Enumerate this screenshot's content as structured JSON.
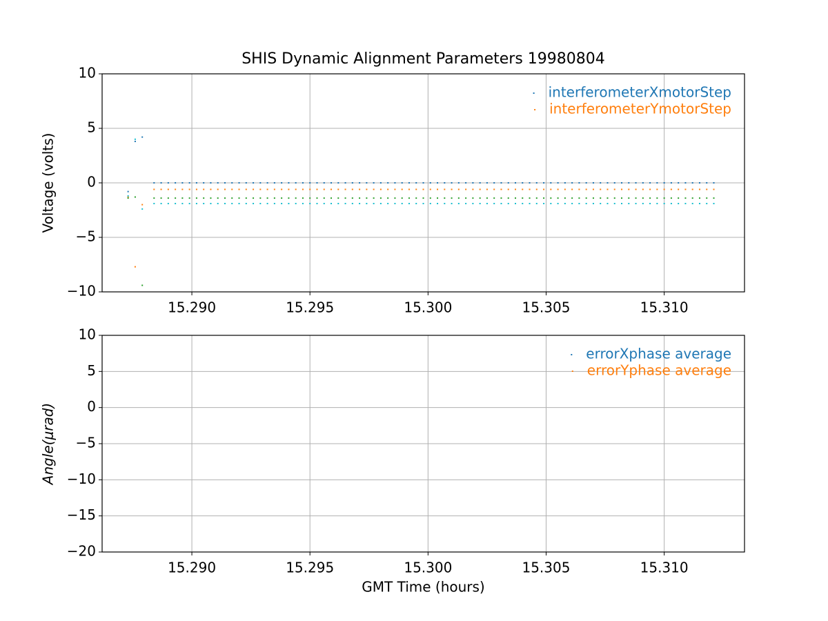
{
  "chart_data": [
    {
      "type": "scatter",
      "title": "SHIS Dynamic Alignment Parameters 19980804",
      "ylabel": "Voltage (volts)",
      "xlim": [
        15.2862,
        15.3134
      ],
      "ylim": [
        -10,
        10
      ],
      "xticks": [
        {
          "value": 15.29,
          "label": "15.290"
        },
        {
          "value": 15.295,
          "label": "15.295"
        },
        {
          "value": 15.3,
          "label": "15.300"
        },
        {
          "value": 15.305,
          "label": "15.305"
        },
        {
          "value": 15.31,
          "label": "15.310"
        }
      ],
      "yticks": [
        {
          "value": -10,
          "label": "−10"
        },
        {
          "value": -5,
          "label": "−5"
        },
        0,
        5,
        10
      ],
      "grid": true,
      "legend": "upper right",
      "x": [
        15.2873,
        15.2876,
        15.2879,
        15.2884,
        15.2887,
        15.289,
        15.2893,
        15.2896,
        15.2899,
        15.2902,
        15.2905,
        15.2908,
        15.2911,
        15.2914,
        15.2917,
        15.292,
        15.2923,
        15.2926,
        15.2929,
        15.2932,
        15.2935,
        15.2938,
        15.2941,
        15.2944,
        15.2947,
        15.295,
        15.2953,
        15.2956,
        15.2959,
        15.2962,
        15.2965,
        15.2968,
        15.2971,
        15.2974,
        15.2977,
        15.298,
        15.2983,
        15.2986,
        15.2989,
        15.2992,
        15.2995,
        15.2998,
        15.3001,
        15.3004,
        15.3007,
        15.301,
        15.3013,
        15.3016,
        15.3019,
        15.3022,
        15.3025,
        15.3028,
        15.3031,
        15.3034,
        15.3037,
        15.304,
        15.3043,
        15.3046,
        15.3049,
        15.3052,
        15.3055,
        15.3058,
        15.3061,
        15.3064,
        15.3067,
        15.307,
        15.3073,
        15.3076,
        15.3079,
        15.3082,
        15.3085,
        15.3088,
        15.3091,
        15.3094,
        15.3097,
        15.31,
        15.3103,
        15.3106,
        15.3109,
        15.3112,
        15.3115,
        15.3118,
        15.3121
      ],
      "series": [
        {
          "name": "interferometerXmotorStep",
          "color": "#1f77b4",
          "values": [
            -0.8,
            3.8,
            4.2,
            0,
            0,
            0,
            0,
            0,
            0,
            0,
            0,
            0,
            0,
            0,
            0,
            0,
            0,
            0,
            0,
            0,
            0,
            0,
            0,
            0,
            0,
            0,
            0,
            0,
            0,
            0,
            0,
            0,
            0,
            0,
            0,
            0,
            0,
            0,
            0,
            0,
            0,
            0,
            0,
            0,
            0,
            0,
            0,
            0,
            0,
            0,
            0,
            0,
            0,
            0,
            0,
            0,
            0,
            0,
            0,
            0,
            0,
            0,
            0,
            0,
            0,
            0,
            0,
            0,
            0,
            0,
            0,
            0,
            0,
            0,
            0,
            0,
            0,
            0,
            0,
            0,
            0,
            0,
            0
          ]
        },
        {
          "name": "interferometerYmotorStep",
          "color": "#ff7f0e",
          "values": [
            -1.3,
            -7.7,
            -2.0,
            -0.6,
            -0.6,
            -0.6,
            -0.6,
            -0.6,
            -0.6,
            -0.6,
            -0.6,
            -0.6,
            -0.6,
            -0.6,
            -0.6,
            -0.6,
            -0.6,
            -0.6,
            -0.6,
            -0.6,
            -0.6,
            -0.6,
            -0.6,
            -0.6,
            -0.6,
            -0.6,
            -0.6,
            -0.6,
            -0.6,
            -0.6,
            -0.6,
            -0.6,
            -0.6,
            -0.6,
            -0.6,
            -0.6,
            -0.6,
            -0.6,
            -0.6,
            -0.6,
            -0.6,
            -0.6,
            -0.6,
            -0.6,
            -0.6,
            -0.6,
            -0.6,
            -0.6,
            -0.6,
            -0.6,
            -0.6,
            -0.6,
            -0.6,
            -0.6,
            -0.6,
            -0.6,
            -0.6,
            -0.6,
            -0.6,
            -0.6,
            -0.6,
            -0.6,
            -0.6,
            -0.6,
            -0.6,
            -0.6,
            -0.6,
            -0.6,
            -0.6,
            -0.6,
            -0.6,
            -0.6,
            -0.6,
            -0.6,
            -0.6,
            -0.6,
            -0.6,
            -0.6,
            -0.6,
            -0.6,
            -0.6,
            -0.6,
            -0.6
          ]
        },
        {
          "color": "#2ca02c",
          "values": [
            -1.4,
            -1.3,
            -9.4,
            -1.4,
            -1.4,
            -1.4,
            -1.4,
            -1.4,
            -1.4,
            -1.4,
            -1.4,
            -1.4,
            -1.4,
            -1.4,
            -1.4,
            -1.4,
            -1.4,
            -1.4,
            -1.4,
            -1.4,
            -1.4,
            -1.4,
            -1.4,
            -1.4,
            -1.4,
            -1.4,
            -1.4,
            -1.4,
            -1.4,
            -1.4,
            -1.4,
            -1.4,
            -1.4,
            -1.4,
            -1.4,
            -1.4,
            -1.4,
            -1.4,
            -1.4,
            -1.4,
            -1.4,
            -1.4,
            -1.4,
            -1.4,
            -1.4,
            -1.4,
            -1.4,
            -1.4,
            -1.4,
            -1.4,
            -1.4,
            -1.4,
            -1.4,
            -1.4,
            -1.4,
            -1.4,
            -1.4,
            -1.4,
            -1.4,
            -1.4,
            -1.4,
            -1.4,
            -1.4,
            -1.4,
            -1.4,
            -1.4,
            -1.4,
            -1.4,
            -1.4,
            -1.4,
            -1.4,
            -1.4,
            -1.4,
            -1.4,
            -1.4,
            -1.4,
            -1.4,
            -1.4,
            -1.4,
            -1.4,
            -1.4,
            -1.4,
            -1.4
          ]
        },
        {
          "color": "#17becf",
          "values": [
            -1.2,
            4.0,
            -2.4,
            -1.9,
            -1.9,
            -1.9,
            -1.9,
            -1.9,
            -1.9,
            -1.9,
            -1.9,
            -1.9,
            -1.9,
            -1.9,
            -1.9,
            -1.9,
            -1.9,
            -1.9,
            -1.9,
            -1.9,
            -1.9,
            -1.9,
            -1.9,
            -1.9,
            -1.9,
            -1.9,
            -1.9,
            -1.9,
            -1.9,
            -1.9,
            -1.9,
            -1.9,
            -1.9,
            -1.9,
            -1.9,
            -1.9,
            -1.9,
            -1.9,
            -1.9,
            -1.9,
            -1.9,
            -1.9,
            -1.9,
            -1.9,
            -1.9,
            -1.9,
            -1.9,
            -1.9,
            -1.9,
            -1.9,
            -1.9,
            -1.9,
            -1.9,
            -1.9,
            -1.9,
            -1.9,
            -1.9,
            -1.9,
            -1.9,
            -1.9,
            -1.9,
            -1.9,
            -1.9,
            -1.9,
            -1.9,
            -1.9,
            -1.9,
            -1.9,
            -1.9,
            -1.9,
            -1.9,
            -1.9,
            -1.9,
            -1.9,
            -1.9,
            -1.9,
            -1.9,
            -1.9,
            -1.9,
            -1.9,
            -1.9,
            -1.9,
            -1.9
          ]
        }
      ]
    },
    {
      "type": "scatter",
      "ylabel": "Angle(μrad)",
      "xlabel": "GMT Time (hours)",
      "xlim": [
        15.2862,
        15.3134
      ],
      "ylim": [
        -20,
        10
      ],
      "xticks": [
        {
          "value": 15.29,
          "label": "15.290"
        },
        {
          "value": 15.295,
          "label": "15.295"
        },
        {
          "value": 15.3,
          "label": "15.300"
        },
        {
          "value": 15.305,
          "label": "15.305"
        },
        {
          "value": 15.31,
          "label": "15.310"
        }
      ],
      "yticks": [
        {
          "value": -20,
          "label": "−20"
        },
        {
          "value": -15,
          "label": "−15"
        },
        {
          "value": -10,
          "label": "−10"
        },
        {
          "value": -5,
          "label": "−5"
        },
        0,
        5,
        10
      ],
      "grid": true,
      "legend": "upper right",
      "x": [],
      "series": [
        {
          "name": "errorXphase average",
          "color": "#1f77b4",
          "values": []
        },
        {
          "name": "errorYphase average",
          "color": "#ff7f0e",
          "values": []
        }
      ]
    }
  ]
}
